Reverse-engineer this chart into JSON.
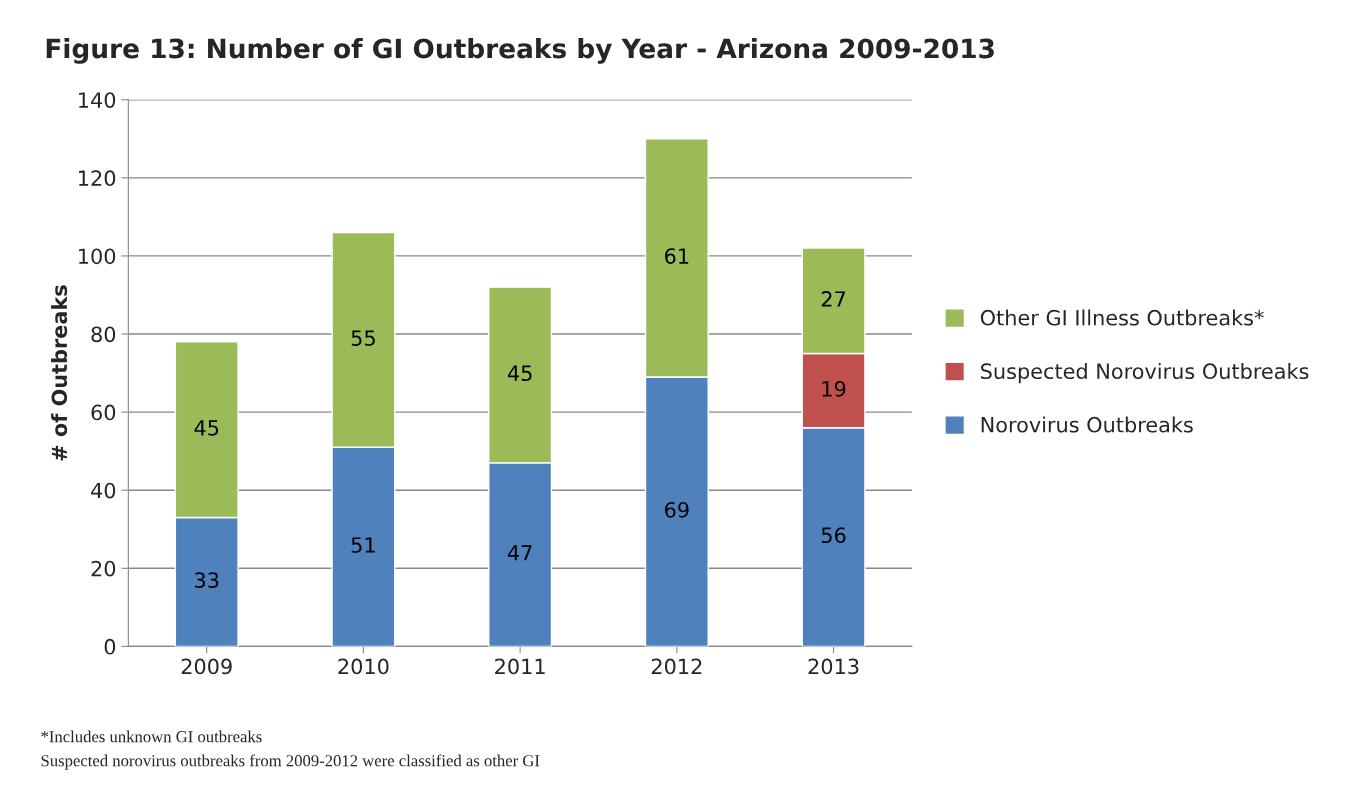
{
  "chart_data": {
    "type": "bar",
    "title": "Figure 13: Number of GI Outbreaks by Year - Arizona 2009-2013",
    "ylabel": "# of Outbreaks",
    "categories": [
      "2009",
      "2010",
      "2011",
      "2012",
      "2013"
    ],
    "stacked": true,
    "series": [
      {
        "name": "Norovirus Outbreaks",
        "color": "#4f81bd",
        "values": [
          33,
          51,
          47,
          69,
          56
        ]
      },
      {
        "name": "Suspected Norovirus Outbreaks",
        "color": "#c0504d",
        "values": [
          null,
          null,
          null,
          null,
          19
        ]
      },
      {
        "name": "Other GI Illness Outbreaks*",
        "color": "#9bbb59",
        "values": [
          45,
          55,
          45,
          61,
          27
        ]
      }
    ],
    "ylim": [
      0,
      140
    ],
    "yticks": [
      0,
      20,
      40,
      60,
      80,
      100,
      120,
      140
    ],
    "grid": "y",
    "legend": "right",
    "data_labels": true,
    "annotations": [
      "*Includes unknown GI outbreaks",
      "Suspected norovirus outbreaks from 2009-2012 were classified as other GI"
    ]
  }
}
